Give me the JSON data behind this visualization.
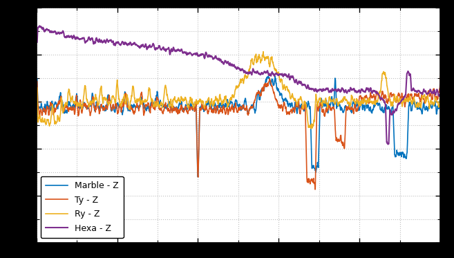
{
  "background_color": "#000000",
  "plot_bg_color": "#ffffff",
  "grid_color": "#c0c0c0",
  "lines": [
    {
      "label": "Marble - Z",
      "color": "#0072bd",
      "lw": 1.2
    },
    {
      "label": "Ty - Z",
      "color": "#d95319",
      "lw": 1.2
    },
    {
      "label": "Ry - Z",
      "color": "#edb120",
      "lw": 1.2
    },
    {
      "label": "Hexa - Z",
      "color": "#7e2f8e",
      "lw": 1.5
    }
  ],
  "xlim": [
    0,
    500
  ],
  "ylim": [
    -80,
    20
  ],
  "figsize": [
    6.57,
    3.73
  ],
  "dpi": 100,
  "legend_loc": "lower left",
  "legend_fontsize": 9,
  "tick_fontsize": 8,
  "spine_color": "#000000",
  "n_points": 2000
}
